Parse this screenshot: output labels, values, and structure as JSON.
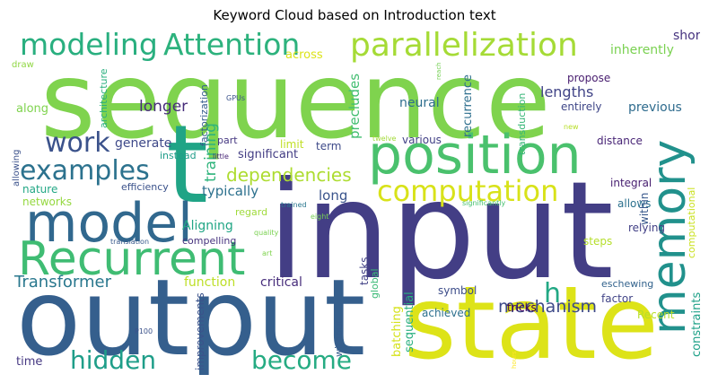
{
  "title": "Keyword Cloud based on Introduction text",
  "words": [
    {
      "text": "sequence",
      "color": "#7fd34e"
    },
    {
      "text": "input",
      "color": "#433e85"
    },
    {
      "text": "output",
      "color": "#355f8d"
    },
    {
      "text": "state",
      "color": "#dde318"
    },
    {
      "text": "t",
      "color": "#20a486"
    },
    {
      "text": "model",
      "color": "#31688e"
    },
    {
      "text": "position",
      "color": "#4ac16d"
    },
    {
      "text": "Recurrent",
      "color": "#3fbc73"
    },
    {
      "text": "memory",
      "color": "#21918c"
    },
    {
      "text": "computation",
      "color": "#d8e219"
    },
    {
      "text": "parallelization",
      "color": "#a5db36"
    },
    {
      "text": "modeling",
      "color": "#29af7f"
    },
    {
      "text": "Attention",
      "color": "#2db27d"
    },
    {
      "text": "examples",
      "color": "#2c728e"
    },
    {
      "text": "work",
      "color": "#3b528b"
    },
    {
      "text": "hidden",
      "color": "#1f9e89"
    },
    {
      "text": "become",
      "color": "#25ab82"
    },
    {
      "text": "dependencies",
      "color": "#addc30"
    },
    {
      "text": "mechanism",
      "color": "#3e4a89"
    },
    {
      "text": "Transformer",
      "color": "#2a788e"
    },
    {
      "text": "h",
      "color": "#22a884"
    },
    {
      "text": "longer",
      "color": "#472c7a"
    },
    {
      "text": "lengths",
      "color": "#414487"
    },
    {
      "text": "neural",
      "color": "#2e6e8e"
    },
    {
      "text": "training",
      "color": "#2fb47c"
    },
    {
      "text": "generate",
      "color": "#3e4989"
    },
    {
      "text": "typically",
      "color": "#2d718e"
    },
    {
      "text": "long",
      "color": "#3a548c"
    },
    {
      "text": "significant",
      "color": "#433d84"
    },
    {
      "text": "previous",
      "color": "#2f6c8e"
    },
    {
      "text": "recurrence",
      "color": "#2e6f8e"
    },
    {
      "text": "precludes",
      "color": "#42be71"
    },
    {
      "text": "short",
      "color": "#46337f"
    },
    {
      "text": "inherently",
      "color": "#7ad151"
    },
    {
      "text": "propose",
      "color": "#481d6f"
    },
    {
      "text": "entirely",
      "color": "#3f4788"
    },
    {
      "text": "distance",
      "color": "#482576"
    },
    {
      "text": "integral",
      "color": "#482071"
    },
    {
      "text": "allows",
      "color": "#2c718e"
    },
    {
      "text": "steps",
      "color": "#b5de2b"
    },
    {
      "text": "relying",
      "color": "#424086"
    },
    {
      "text": "within",
      "color": "#38588c"
    },
    {
      "text": "constraints",
      "color": "#1fa188"
    },
    {
      "text": "computational",
      "color": "#cae11f"
    },
    {
      "text": "factor",
      "color": "#414487"
    },
    {
      "text": "Recent",
      "color": "#b8de29"
    },
    {
      "text": "eschewing",
      "color": "#33638d"
    },
    {
      "text": "symbol",
      "color": "#3d4d8a"
    },
    {
      "text": "tricks",
      "color": "#440154"
    },
    {
      "text": "achieved",
      "color": "#2d708e"
    },
    {
      "text": "batching",
      "color": "#d5e21a"
    },
    {
      "text": "sequential",
      "color": "#29af7f"
    },
    {
      "text": "tasks",
      "color": "#424186"
    },
    {
      "text": "global",
      "color": "#3aba76"
    },
    {
      "text": "critical",
      "color": "#472d7b"
    },
    {
      "text": "function",
      "color": "#bddf26"
    },
    {
      "text": "improvements",
      "color": "#3b528b"
    },
    {
      "text": "without",
      "color": "#365c8d"
    },
    {
      "text": "factorization",
      "color": "#365d8d"
    },
    {
      "text": "architecture",
      "color": "#2ab07f"
    },
    {
      "text": "along",
      "color": "#7fd34e"
    },
    {
      "text": "across",
      "color": "#dce319"
    },
    {
      "text": "transduction",
      "color": "#36b677"
    },
    {
      "text": "various",
      "color": "#424086"
    },
    {
      "text": "term",
      "color": "#3e4a89"
    },
    {
      "text": "limit",
      "color": "#c0df25"
    },
    {
      "text": "part",
      "color": "#453781"
    },
    {
      "text": "instead",
      "color": "#1e9c89"
    },
    {
      "text": "efficiency",
      "color": "#3b528b"
    },
    {
      "text": "networks",
      "color": "#95d840"
    },
    {
      "text": "nature",
      "color": "#22a785"
    },
    {
      "text": "allowing",
      "color": "#3b518b"
    },
    {
      "text": "Aligning",
      "color": "#21a685"
    },
    {
      "text": "regard",
      "color": "#9fda3a"
    },
    {
      "text": "compelling",
      "color": "#46327e"
    },
    {
      "text": "time",
      "color": "#453882"
    },
    {
      "text": "draw",
      "color": "#90d743"
    },
    {
      "text": "GPUs",
      "color": "#3b528b"
    },
    {
      "text": "little",
      "color": "#482677"
    },
    {
      "text": "twelve",
      "color": "#a2da37"
    },
    {
      "text": "new",
      "color": "#b8de29"
    },
    {
      "text": "reach",
      "color": "#75d054"
    },
    {
      "text": "trained",
      "color": "#2a778e"
    },
    {
      "text": "eight",
      "color": "#77d153"
    },
    {
      "text": "significantly",
      "color": "#46c06f"
    },
    {
      "text": "translation",
      "color": "#38598c"
    },
    {
      "text": "quality",
      "color": "#7ad151"
    },
    {
      "text": "art",
      "color": "#7fd34e"
    },
    {
      "text": "P100",
      "color": "#3b528b"
    },
    {
      "text": "hours",
      "color": "#fde725"
    }
  ]
}
